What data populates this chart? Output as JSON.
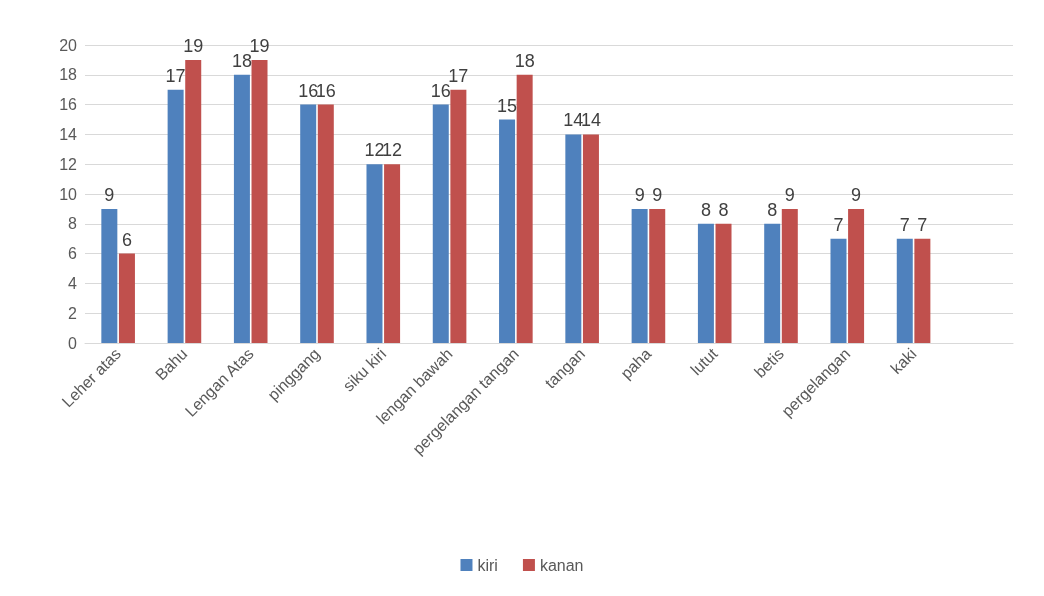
{
  "chart_data": {
    "type": "bar",
    "categories": [
      "Leher atas",
      "Bahu",
      "Lengan Atas",
      "pinggang",
      "siku kiri",
      "lengan bawah",
      "pergelangan tangan",
      "tangan",
      "paha",
      "lutut",
      "betis",
      "pergelangan",
      "kaki",
      null
    ],
    "series": [
      {
        "name": "kiri",
        "color": "#4f81bd",
        "values": [
          9,
          17,
          18,
          16,
          12,
          16,
          15,
          14,
          9,
          8,
          8,
          7,
          7,
          null
        ]
      },
      {
        "name": "kanan",
        "color": "#c0504d",
        "values": [
          6,
          19,
          19,
          16,
          12,
          17,
          18,
          14,
          9,
          8,
          9,
          9,
          7,
          null
        ]
      }
    ],
    "ylim": [
      0,
      20
    ],
    "yticks": [
      0,
      2,
      4,
      6,
      8,
      10,
      12,
      14,
      16,
      18,
      20
    ],
    "grid": "y",
    "legend": "bottom",
    "data_labels": true
  }
}
